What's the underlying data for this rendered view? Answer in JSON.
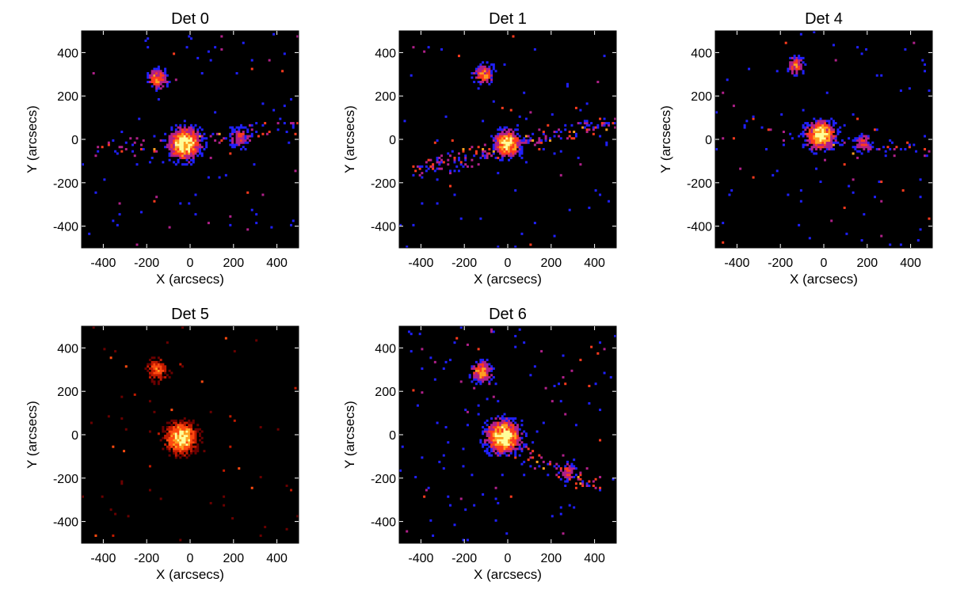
{
  "chart_data": [
    {
      "type": "heatmap",
      "title": "Det 0",
      "xlabel": "X (arcsecs)",
      "ylabel": "Y (arcsecs)",
      "xlim": [
        -500,
        500
      ],
      "ylim": [
        -500,
        500
      ],
      "xticks": [
        -400,
        -200,
        0,
        200,
        400
      ],
      "yticks": [
        -400,
        -200,
        0,
        200,
        400
      ],
      "xtick_labels": [
        "-400",
        "-200",
        "0",
        "200",
        "400"
      ],
      "ytick_labels": [
        "-400",
        "-200",
        "0",
        "200",
        "400"
      ],
      "background": "#000000",
      "colormap": [
        "#000000",
        "#2020ff",
        "#b0208a",
        "#ff3b1e",
        "#ffa020",
        "#ffff9a"
      ],
      "sources": [
        {
          "x": -25,
          "y": -20,
          "peak": 1.0,
          "sigma": 40
        },
        {
          "x": -150,
          "y": 280,
          "peak": 0.55,
          "sigma": 25
        },
        {
          "x": 230,
          "y": 10,
          "peak": 0.3,
          "sigma": 30
        }
      ],
      "streaks": [
        {
          "x1": -400,
          "y1": -50,
          "x2": 470,
          "y2": 50,
          "density": 0.5
        }
      ],
      "noise_density": 0.9,
      "noise_palette": "blue"
    },
    {
      "type": "heatmap",
      "title": "Det 1",
      "xlabel": "X (arcsecs)",
      "ylabel": "Y (arcsecs)",
      "xlim": [
        -500,
        500
      ],
      "ylim": [
        -500,
        500
      ],
      "xticks": [
        -400,
        -200,
        0,
        200,
        400
      ],
      "yticks": [
        -400,
        -200,
        0,
        200,
        400
      ],
      "xtick_labels": [
        "-400",
        "-200",
        "0",
        "200",
        "400"
      ],
      "ytick_labels": [
        "-400",
        "-200",
        "0",
        "200",
        "400"
      ],
      "background": "#000000",
      "colormap": [
        "#000000",
        "#2020ff",
        "#b0208a",
        "#ff3b1e",
        "#ffa020",
        "#ffff9a"
      ],
      "sources": [
        {
          "x": 0,
          "y": -20,
          "peak": 1.0,
          "sigma": 32
        },
        {
          "x": -110,
          "y": 300,
          "peak": 0.55,
          "sigma": 24
        }
      ],
      "streaks": [
        {
          "x1": -420,
          "y1": -140,
          "x2": 470,
          "y2": 80,
          "density": 1.1
        }
      ],
      "noise_density": 0.8,
      "noise_palette": "blue"
    },
    {
      "type": "heatmap",
      "title": "Det 4",
      "xlabel": "X (arcsecs)",
      "ylabel": "Y (arcsecs)",
      "xlim": [
        -500,
        500
      ],
      "ylim": [
        -500,
        500
      ],
      "xticks": [
        -400,
        -200,
        0,
        200,
        400
      ],
      "yticks": [
        -400,
        -200,
        0,
        200,
        400
      ],
      "xtick_labels": [
        "-400",
        "-200",
        "0",
        "200",
        "400"
      ],
      "ytick_labels": [
        "-400",
        "-200",
        "0",
        "200",
        "400"
      ],
      "background": "#000000",
      "colormap": [
        "#000000",
        "#2020ff",
        "#b0208a",
        "#ff3b1e",
        "#ffa020",
        "#ffff9a"
      ],
      "sources": [
        {
          "x": -15,
          "y": 20,
          "peak": 1.0,
          "sigma": 35
        },
        {
          "x": -130,
          "y": 340,
          "peak": 0.45,
          "sigma": 22
        },
        {
          "x": 180,
          "y": -20,
          "peak": 0.3,
          "sigma": 25
        }
      ],
      "streaks": [
        {
          "x1": -200,
          "y1": 20,
          "x2": 480,
          "y2": -50,
          "density": 0.5
        }
      ],
      "noise_density": 0.8,
      "noise_palette": "blue"
    },
    {
      "type": "heatmap",
      "title": "Det 5",
      "xlabel": "X (arcsecs)",
      "ylabel": "Y (arcsecs)",
      "xlim": [
        -500,
        500
      ],
      "ylim": [
        -500,
        500
      ],
      "xticks": [
        -400,
        -200,
        0,
        200,
        400
      ],
      "yticks": [
        -400,
        -200,
        0,
        200,
        400
      ],
      "xtick_labels": [
        "-400",
        "-200",
        "0",
        "200",
        "400"
      ],
      "ytick_labels": [
        "-400",
        "-200",
        "0",
        "200",
        "400"
      ],
      "background": "#000000",
      "colormap": [
        "#000000",
        "#6a0000",
        "#c01a00",
        "#ff4a10",
        "#ffa020",
        "#ffff9a"
      ],
      "sources": [
        {
          "x": -40,
          "y": -15,
          "peak": 1.0,
          "sigma": 38
        },
        {
          "x": -150,
          "y": 300,
          "peak": 0.4,
          "sigma": 30
        }
      ],
      "streaks": [],
      "noise_density": 0.7,
      "noise_palette": "red"
    },
    {
      "type": "heatmap",
      "title": "Det 6",
      "xlabel": "X (arcsecs)",
      "ylabel": "Y (arcsecs)",
      "xlim": [
        -500,
        500
      ],
      "ylim": [
        -500,
        500
      ],
      "xticks": [
        -400,
        -200,
        0,
        200,
        400
      ],
      "yticks": [
        -400,
        -200,
        0,
        200,
        400
      ],
      "xtick_labels": [
        "-400",
        "-200",
        "0",
        "200",
        "400"
      ],
      "ytick_labels": [
        "-400",
        "-200",
        "0",
        "200",
        "400"
      ],
      "background": "#000000",
      "colormap": [
        "#000000",
        "#2020ff",
        "#b0208a",
        "#ff3b1e",
        "#ffa020",
        "#ffff9a"
      ],
      "sources": [
        {
          "x": -20,
          "y": -10,
          "peak": 1.0,
          "sigma": 42
        },
        {
          "x": -120,
          "y": 290,
          "peak": 0.6,
          "sigma": 26
        },
        {
          "x": 280,
          "y": -170,
          "peak": 0.35,
          "sigma": 22
        }
      ],
      "streaks": [
        {
          "x1": 50,
          "y1": -80,
          "x2": 390,
          "y2": -230,
          "density": 0.9
        }
      ],
      "noise_density": 1.0,
      "noise_palette": "blue"
    }
  ]
}
